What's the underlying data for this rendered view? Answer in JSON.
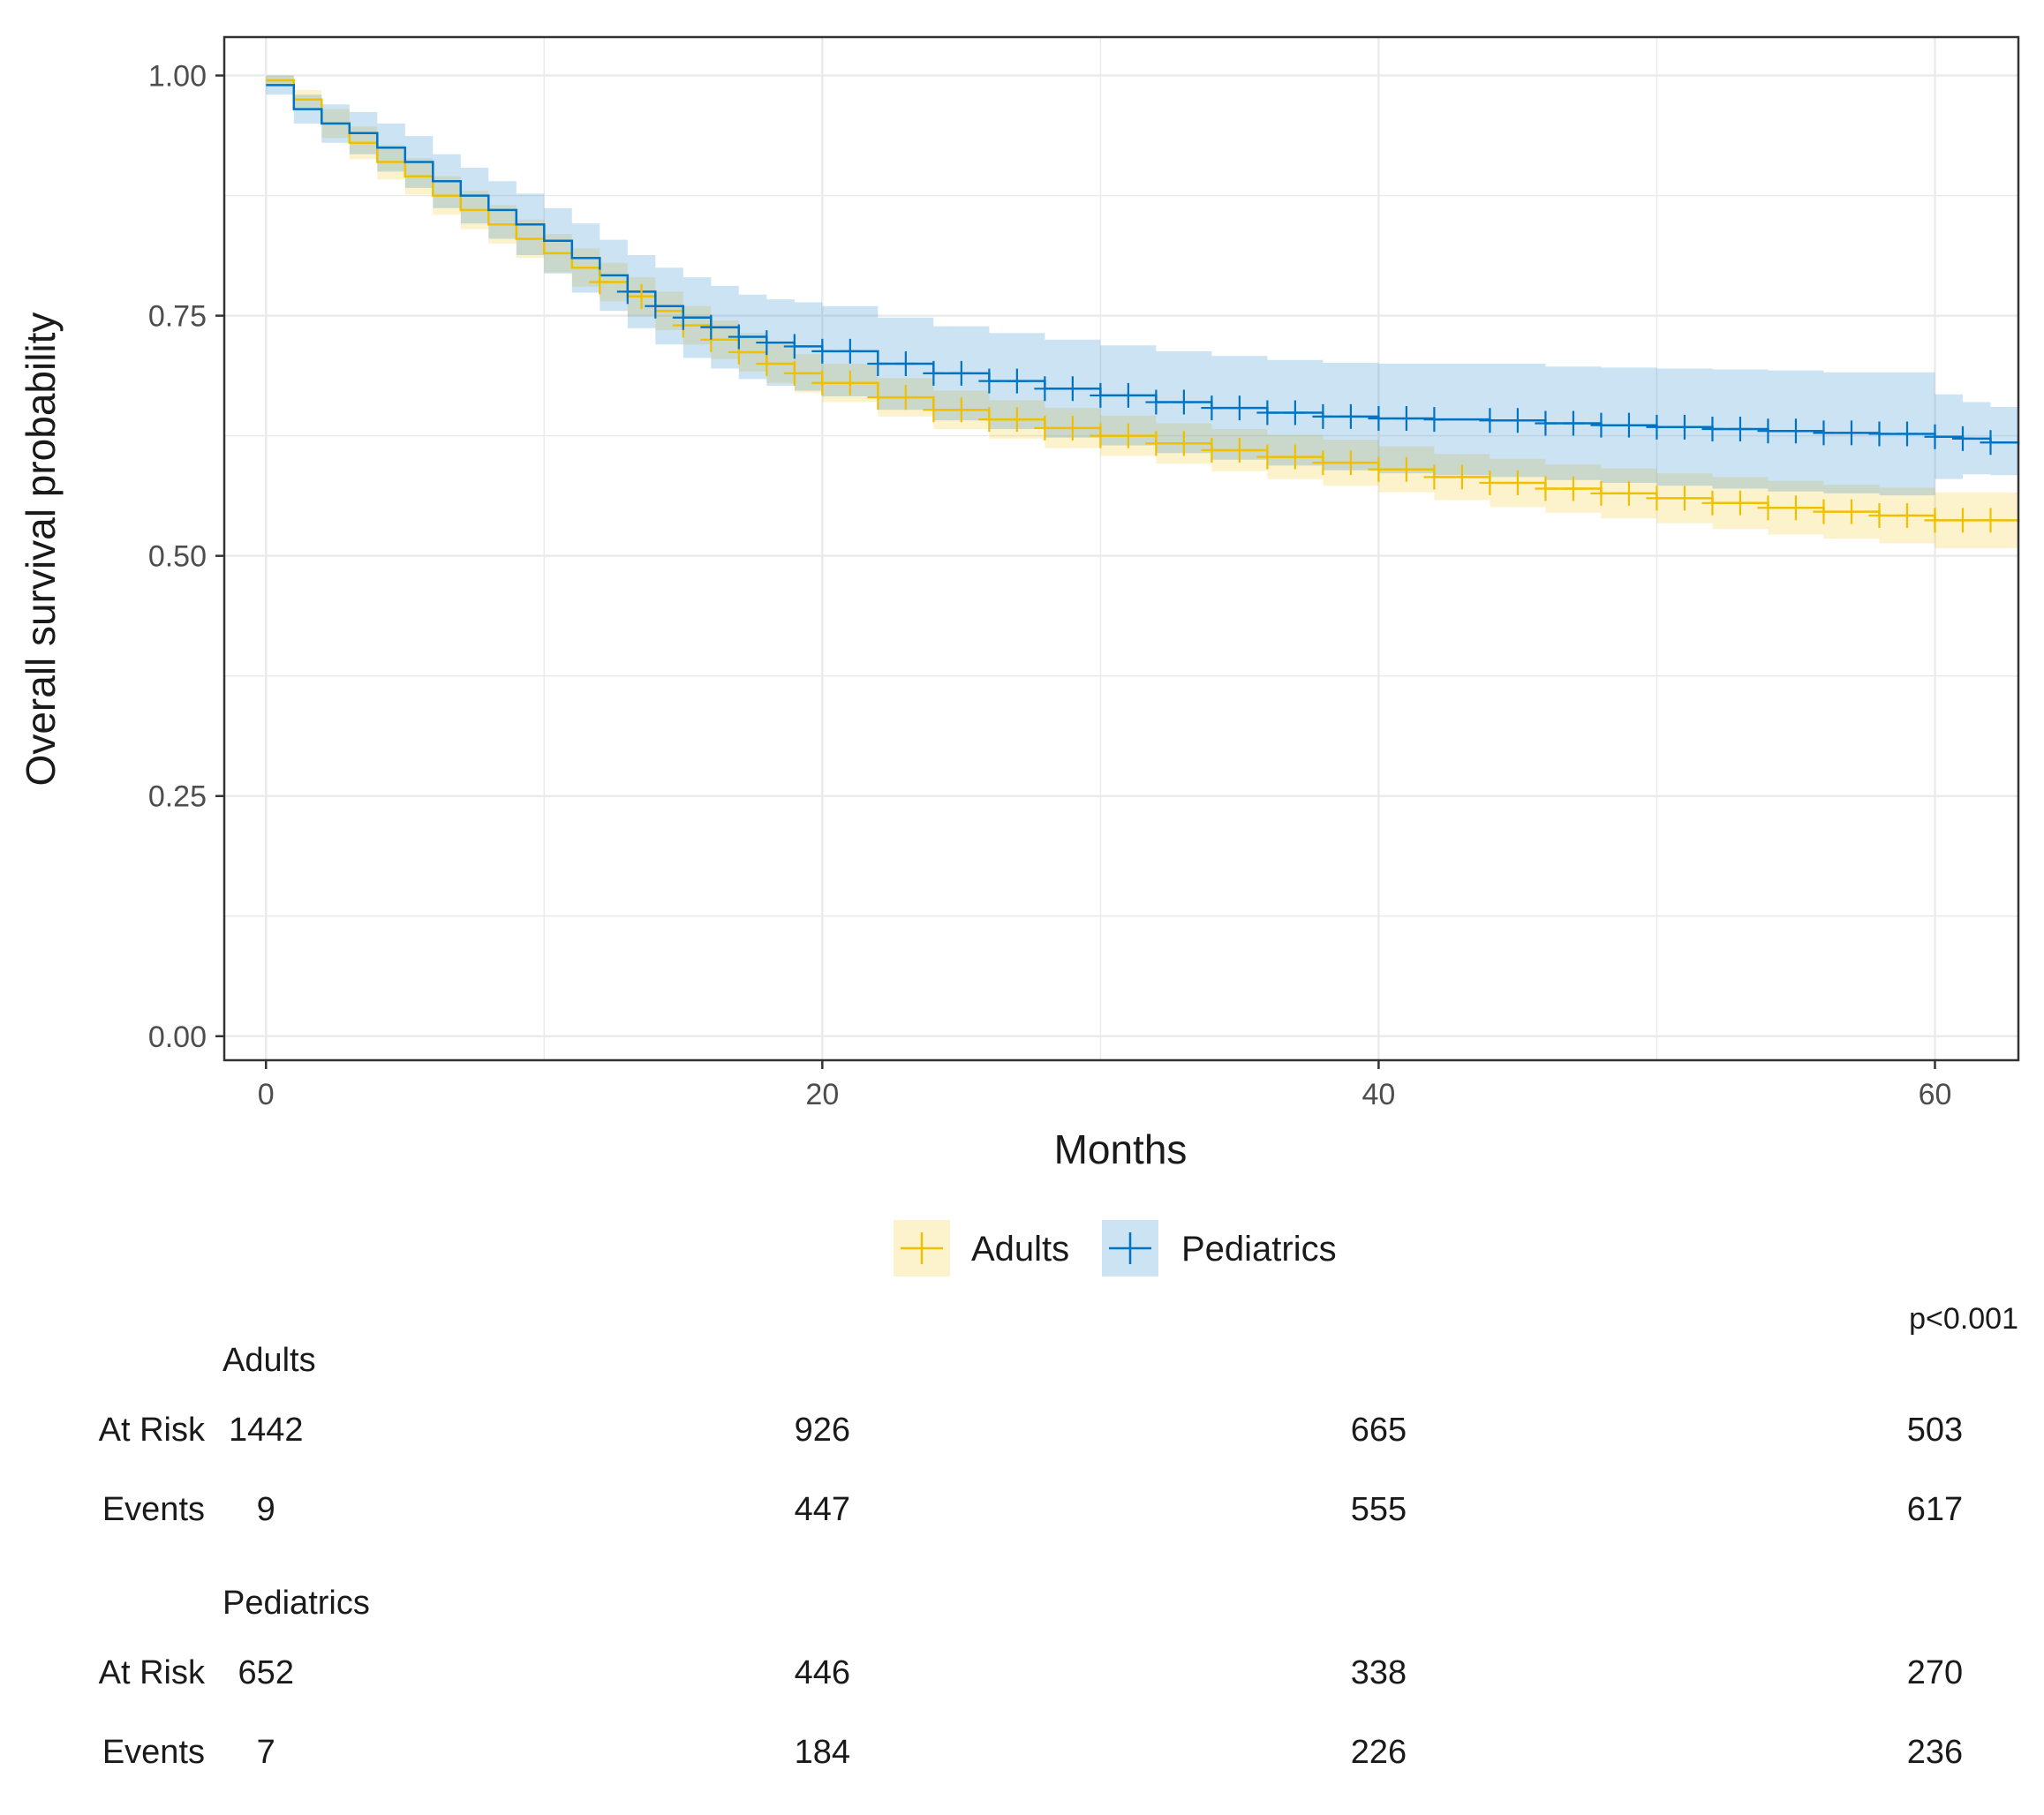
{
  "chart_data": {
    "type": "line",
    "subtype": "kaplan-meier",
    "xlabel": "Months",
    "ylabel": "Overall survival probability",
    "xlim": [
      -1.5,
      63
    ],
    "ylim": [
      -0.025,
      1.04
    ],
    "xticks": [
      0,
      20,
      40,
      60
    ],
    "xtick_labels": [
      "0",
      "20",
      "40",
      "60"
    ],
    "yticks": [
      0,
      0.25,
      0.5,
      0.75,
      1.0
    ],
    "ytick_labels": [
      "0.00",
      "0.25",
      "0.50",
      "0.75",
      "1.00"
    ],
    "grid": true,
    "legend_position": "bottom",
    "p_value": "p<0.001",
    "series": [
      {
        "name": "Adults",
        "color": "#EFC000",
        "band_color": "#EFC000",
        "x": [
          0,
          1,
          2,
          3,
          4,
          5,
          6,
          7,
          8,
          9,
          10,
          11,
          12,
          13,
          14,
          15,
          16,
          17,
          18,
          19,
          20,
          22,
          24,
          26,
          28,
          30,
          32,
          34,
          36,
          38,
          40,
          42,
          44,
          46,
          48,
          50,
          52,
          54,
          56,
          58,
          60,
          63
        ],
        "y": [
          0.995,
          0.975,
          0.95,
          0.93,
          0.91,
          0.895,
          0.875,
          0.86,
          0.845,
          0.83,
          0.815,
          0.8,
          0.785,
          0.77,
          0.755,
          0.74,
          0.725,
          0.712,
          0.7,
          0.69,
          0.68,
          0.665,
          0.652,
          0.642,
          0.633,
          0.625,
          0.617,
          0.61,
          0.603,
          0.597,
          0.59,
          0.582,
          0.576,
          0.57,
          0.565,
          0.56,
          0.555,
          0.55,
          0.546,
          0.542,
          0.537,
          0.535
        ],
        "lower": [
          0.99,
          0.965,
          0.935,
          0.913,
          0.892,
          0.876,
          0.855,
          0.84,
          0.825,
          0.81,
          0.795,
          0.78,
          0.765,
          0.75,
          0.735,
          0.72,
          0.705,
          0.692,
          0.68,
          0.67,
          0.66,
          0.645,
          0.632,
          0.622,
          0.612,
          0.604,
          0.596,
          0.588,
          0.58,
          0.573,
          0.566,
          0.558,
          0.551,
          0.545,
          0.539,
          0.534,
          0.528,
          0.522,
          0.518,
          0.513,
          0.508,
          0.505
        ],
        "upper": [
          1.0,
          0.985,
          0.965,
          0.947,
          0.928,
          0.914,
          0.895,
          0.88,
          0.865,
          0.85,
          0.835,
          0.82,
          0.805,
          0.79,
          0.775,
          0.76,
          0.745,
          0.732,
          0.72,
          0.71,
          0.7,
          0.685,
          0.672,
          0.662,
          0.654,
          0.646,
          0.638,
          0.632,
          0.626,
          0.621,
          0.614,
          0.606,
          0.601,
          0.595,
          0.591,
          0.586,
          0.582,
          0.578,
          0.574,
          0.571,
          0.566,
          0.565
        ],
        "censor_x": [
          12,
          13.5,
          15,
          16,
          17,
          18,
          19,
          20,
          21,
          22,
          23,
          24,
          25,
          26,
          27,
          28,
          29,
          30,
          31,
          32,
          33,
          34,
          35,
          36,
          37,
          38,
          39,
          40,
          41,
          42,
          43,
          44,
          45,
          46,
          47,
          48,
          49,
          50,
          51,
          52,
          53,
          54,
          55,
          56,
          57,
          58,
          59,
          60,
          61,
          62
        ]
      },
      {
        "name": "Pediatrics",
        "color": "#0073C2",
        "band_color": "#0073C2",
        "x": [
          0,
          1,
          2,
          3,
          4,
          5,
          6,
          7,
          8,
          9,
          10,
          11,
          12,
          13,
          14,
          15,
          16,
          17,
          18,
          19,
          20,
          22,
          24,
          26,
          28,
          30,
          32,
          34,
          36,
          38,
          40,
          42,
          44,
          46,
          48,
          50,
          52,
          54,
          56,
          58,
          60,
          61,
          62,
          63
        ],
        "y": [
          0.99,
          0.965,
          0.95,
          0.94,
          0.925,
          0.91,
          0.89,
          0.875,
          0.86,
          0.845,
          0.828,
          0.81,
          0.792,
          0.775,
          0.76,
          0.748,
          0.738,
          0.728,
          0.722,
          0.718,
          0.713,
          0.7,
          0.69,
          0.682,
          0.674,
          0.667,
          0.66,
          0.654,
          0.649,
          0.645,
          0.643,
          0.642,
          0.641,
          0.638,
          0.636,
          0.634,
          0.632,
          0.63,
          0.628,
          0.627,
          0.624,
          0.622,
          0.618,
          0.616
        ],
        "lower": [
          0.98,
          0.95,
          0.93,
          0.918,
          0.9,
          0.883,
          0.862,
          0.846,
          0.83,
          0.813,
          0.794,
          0.774,
          0.755,
          0.737,
          0.72,
          0.706,
          0.695,
          0.684,
          0.677,
          0.672,
          0.666,
          0.652,
          0.641,
          0.632,
          0.623,
          0.615,
          0.607,
          0.6,
          0.594,
          0.589,
          0.586,
          0.584,
          0.582,
          0.579,
          0.576,
          0.573,
          0.57,
          0.567,
          0.565,
          0.563,
          0.58,
          0.585,
          0.584,
          0.585
        ],
        "upper": [
          1.0,
          0.98,
          0.97,
          0.962,
          0.95,
          0.937,
          0.918,
          0.904,
          0.89,
          0.877,
          0.862,
          0.846,
          0.829,
          0.813,
          0.8,
          0.79,
          0.781,
          0.772,
          0.767,
          0.764,
          0.76,
          0.748,
          0.739,
          0.732,
          0.725,
          0.719,
          0.713,
          0.708,
          0.704,
          0.701,
          0.7,
          0.7,
          0.7,
          0.697,
          0.696,
          0.695,
          0.694,
          0.693,
          0.691,
          0.691,
          0.668,
          0.66,
          0.655,
          0.655
        ],
        "censor_x": [
          13,
          14,
          15,
          16,
          17,
          18,
          19,
          20,
          21,
          22,
          23,
          24,
          25,
          26,
          27,
          28,
          29,
          30,
          31,
          32,
          33,
          34,
          35,
          36,
          37,
          38,
          39,
          40,
          41,
          42,
          44,
          45,
          46,
          47,
          48,
          49,
          50,
          51,
          52,
          53,
          54,
          55,
          56,
          57,
          58,
          59,
          60,
          61,
          62
        ]
      }
    ]
  },
  "risk_table": {
    "row_labels": {
      "at_risk": "At Risk",
      "events": "Events"
    },
    "time_points": [
      0,
      20,
      40,
      60
    ],
    "groups": [
      {
        "name": "Adults",
        "at_risk": [
          "1442",
          "926",
          "665",
          "503"
        ],
        "events": [
          "9",
          "447",
          "555",
          "617"
        ]
      },
      {
        "name": "Pediatrics",
        "at_risk": [
          "652",
          "446",
          "338",
          "270"
        ],
        "events": [
          "7",
          "184",
          "226",
          "236"
        ]
      }
    ]
  }
}
